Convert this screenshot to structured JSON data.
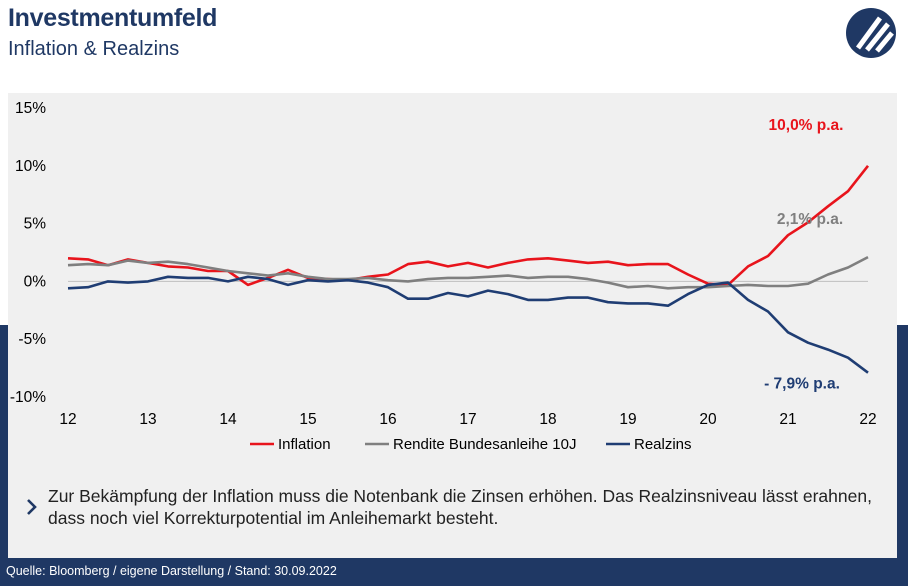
{
  "header": {
    "title": "Investmentumfeld",
    "subtitle": "Inflation & Realzins"
  },
  "logo": {
    "icon": "company-logo-icon"
  },
  "note": {
    "text": "Zur Bekämpfung der Inflation muss die Notenbank die Zinsen erhöhen. Das Realzinsniveau lässt erahnen, dass noch viel Korrekturpotential im Anleihemarkt besteht."
  },
  "footer": {
    "source": "Quelle: Bloomberg / eigene Darstellung / Stand: 30.09.2022"
  },
  "colors": {
    "inflation": "#e8141c",
    "rendite": "#7f7f7f",
    "realzins": "#1f3d73",
    "brand": "#1f3864"
  },
  "chart_data": {
    "type": "line",
    "title": "",
    "xlabel": "",
    "ylabel": "",
    "x_ticks": [
      "12",
      "13",
      "14",
      "15",
      "16",
      "17",
      "18",
      "19",
      "20",
      "21",
      "22"
    ],
    "y_ticks": [
      "15%",
      "10%",
      "5%",
      "0%",
      "-5%",
      "-10%"
    ],
    "xlim": [
      12,
      22
    ],
    "ylim": [
      -10,
      15
    ],
    "grid": false,
    "legend_position": "bottom",
    "series": [
      {
        "name": "Inflation",
        "color": "#e8141c",
        "end_label": "10,0% p.a.",
        "x": [
          12,
          12.25,
          12.5,
          12.75,
          13,
          13.25,
          13.5,
          13.75,
          14,
          14.25,
          14.5,
          14.75,
          15,
          15.25,
          15.5,
          15.75,
          16,
          16.25,
          16.5,
          16.75,
          17,
          17.25,
          17.5,
          17.75,
          18,
          18.25,
          18.5,
          18.75,
          19,
          19.25,
          19.5,
          19.75,
          20,
          20.25,
          20.5,
          20.75,
          21,
          21.25,
          21.5,
          21.75,
          22
        ],
        "values": [
          2.0,
          1.9,
          1.4,
          1.9,
          1.6,
          1.3,
          1.2,
          0.9,
          0.9,
          -0.3,
          0.3,
          1.0,
          0.3,
          0.2,
          0.1,
          0.4,
          0.6,
          1.5,
          1.7,
          1.3,
          1.6,
          1.2,
          1.6,
          1.9,
          2.0,
          1.8,
          1.6,
          1.7,
          1.4,
          1.5,
          1.5,
          0.6,
          -0.2,
          -0.3,
          1.3,
          2.2,
          4.0,
          5.1,
          6.5,
          7.8,
          10.0
        ]
      },
      {
        "name": "Rendite Bundesanleihe 10J",
        "color": "#7f7f7f",
        "end_label": "2,1% p.a.",
        "x": [
          12,
          12.25,
          12.5,
          12.75,
          13,
          13.25,
          13.5,
          13.75,
          14,
          14.25,
          14.5,
          14.75,
          15,
          15.25,
          15.5,
          15.75,
          16,
          16.25,
          16.5,
          16.75,
          17,
          17.25,
          17.5,
          17.75,
          18,
          18.25,
          18.5,
          18.75,
          19,
          19.25,
          19.5,
          19.75,
          20,
          20.25,
          20.5,
          20.75,
          21,
          21.25,
          21.5,
          21.75,
          22
        ],
        "values": [
          1.4,
          1.5,
          1.4,
          1.8,
          1.6,
          1.7,
          1.5,
          1.2,
          0.9,
          0.7,
          0.5,
          0.7,
          0.4,
          0.2,
          0.2,
          0.3,
          0.1,
          0.0,
          0.2,
          0.3,
          0.3,
          0.4,
          0.5,
          0.3,
          0.4,
          0.4,
          0.2,
          -0.1,
          -0.5,
          -0.4,
          -0.6,
          -0.5,
          -0.5,
          -0.4,
          -0.3,
          -0.4,
          -0.4,
          -0.2,
          0.6,
          1.2,
          2.1
        ]
      },
      {
        "name": "Realzins",
        "color": "#1f3d73",
        "end_label": "- 7,9% p.a.",
        "x": [
          12,
          12.25,
          12.5,
          12.75,
          13,
          13.25,
          13.5,
          13.75,
          14,
          14.25,
          14.5,
          14.75,
          15,
          15.25,
          15.5,
          15.75,
          16,
          16.25,
          16.5,
          16.75,
          17,
          17.25,
          17.5,
          17.75,
          18,
          18.25,
          18.5,
          18.75,
          19,
          19.25,
          19.5,
          19.75,
          20,
          20.25,
          20.5,
          20.75,
          21,
          21.25,
          21.5,
          21.75,
          22
        ],
        "values": [
          -0.6,
          -0.5,
          0.0,
          -0.1,
          0.0,
          0.4,
          0.3,
          0.3,
          0.0,
          0.4,
          0.2,
          -0.3,
          0.1,
          0.0,
          0.1,
          -0.1,
          -0.5,
          -1.5,
          -1.5,
          -1.0,
          -1.3,
          -0.8,
          -1.1,
          -1.6,
          -1.6,
          -1.4,
          -1.4,
          -1.8,
          -1.9,
          -1.9,
          -2.1,
          -1.1,
          -0.3,
          -0.1,
          -1.6,
          -2.6,
          -4.4,
          -5.3,
          -5.9,
          -6.6,
          -7.9
        ]
      }
    ]
  }
}
